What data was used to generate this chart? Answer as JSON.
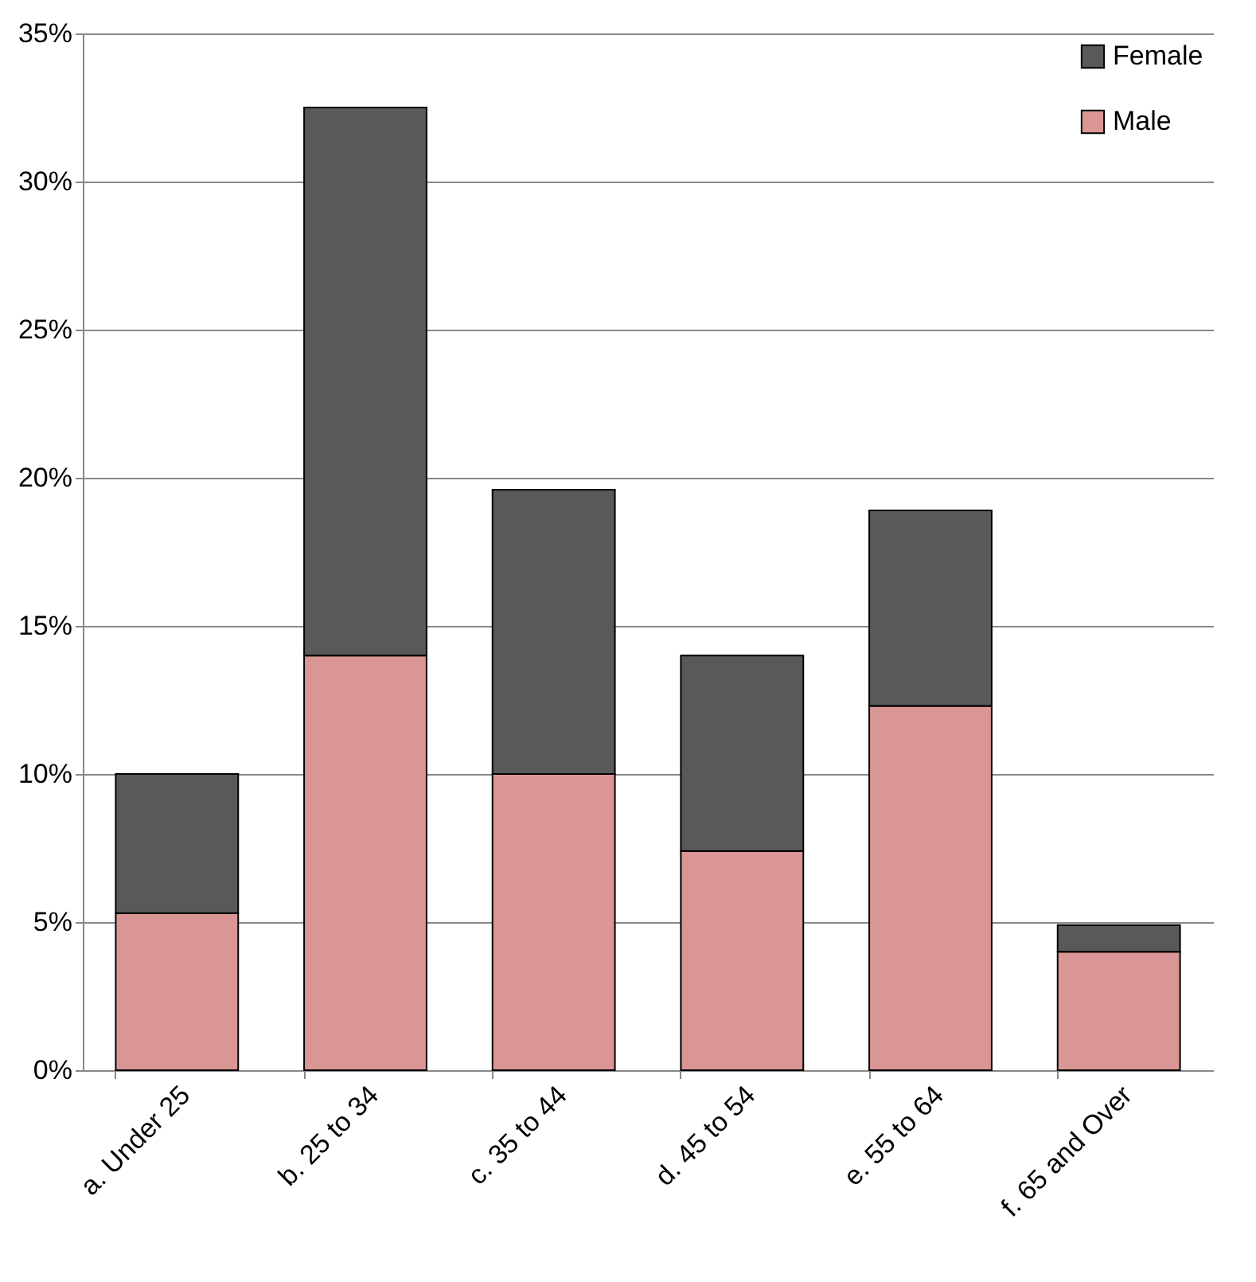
{
  "chart_data": {
    "type": "bar",
    "stacked": true,
    "categories": [
      "a. Under 25",
      "b. 25 to 34",
      "c. 35 to 44",
      "d. 45 to 54",
      "e. 55 to 64",
      "f. 65 and Over"
    ],
    "series": [
      {
        "name": "Male",
        "color": "#d99694",
        "values": [
          5.3,
          14.0,
          10.0,
          7.4,
          12.3,
          4.0
        ]
      },
      {
        "name": "Female",
        "color": "#595959",
        "values": [
          4.7,
          18.5,
          9.6,
          6.6,
          6.6,
          0.9
        ]
      }
    ],
    "ylim": [
      0,
      35
    ],
    "yticks": [
      {
        "value": 0,
        "label": "0%"
      },
      {
        "value": 5,
        "label": "5%"
      },
      {
        "value": 10,
        "label": "10%"
      },
      {
        "value": 15,
        "label": "15%"
      },
      {
        "value": 20,
        "label": "20%"
      },
      {
        "value": 25,
        "label": "25%"
      },
      {
        "value": 30,
        "label": "30%"
      },
      {
        "value": 35,
        "label": "35%"
      }
    ],
    "grid": "y",
    "legend": "top right"
  }
}
